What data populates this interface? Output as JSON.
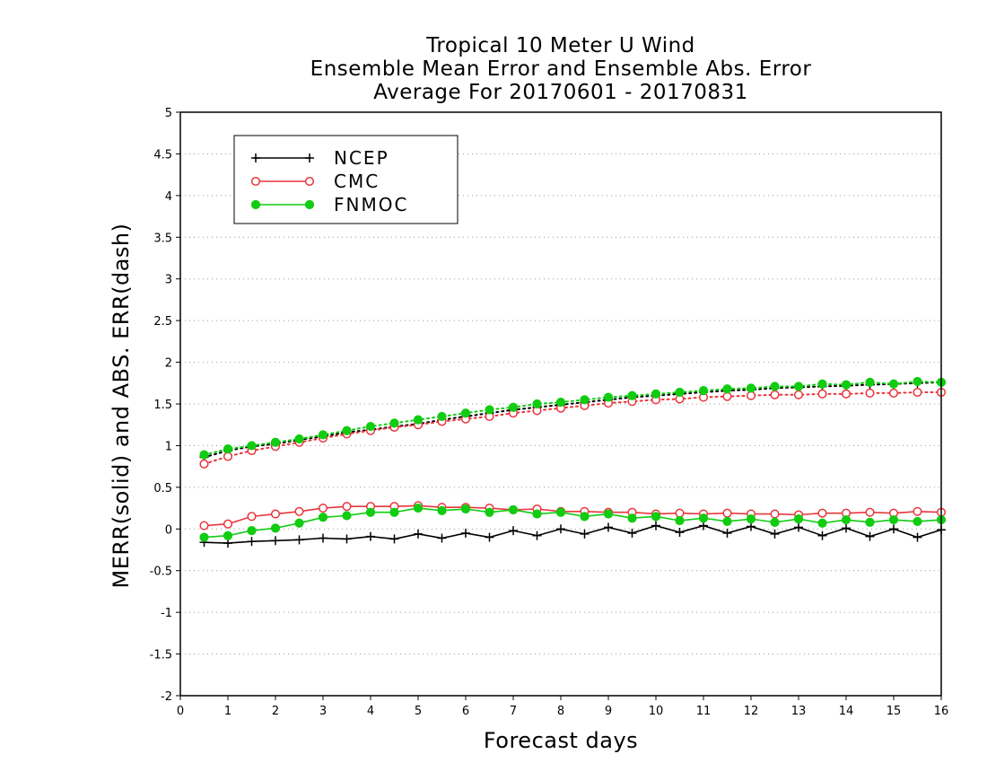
{
  "chart_data": {
    "type": "line",
    "title": "Tropical 10 Meter U Wind",
    "subtitle": "Ensemble Mean Error and Ensemble Abs. Error",
    "subtitle2": "Average For 20170601 - 20170831",
    "xlabel": "Forecast days",
    "ylabel": "MERR(solid) and ABS. ERR(dash)",
    "xlim": [
      0,
      16
    ],
    "ylim": [
      -2,
      5
    ],
    "xticks": [
      "0",
      "1",
      "2",
      "3",
      "4",
      "5",
      "6",
      "7",
      "8",
      "9",
      "10",
      "11",
      "12",
      "13",
      "14",
      "15",
      "16"
    ],
    "yticks": [
      "-2",
      "-1.5",
      "-1",
      "-0.5",
      "0",
      "0.5",
      "1",
      "1.5",
      "2",
      "2.5",
      "3",
      "3.5",
      "4",
      "4.5",
      "5"
    ],
    "grid": "horizontal dotted",
    "legend_position": "top-left",
    "x": [
      0.5,
      1,
      1.5,
      2,
      2.5,
      3,
      3.5,
      4,
      4.5,
      5,
      5.5,
      6,
      6.5,
      7,
      7.5,
      8,
      8.5,
      9,
      9.5,
      10,
      10.5,
      11,
      11.5,
      12,
      12.5,
      13,
      13.5,
      14,
      14.5,
      15,
      15.5,
      16
    ],
    "series": [
      {
        "name": "NCEP",
        "color": "#000000",
        "marker": "plus",
        "merr": [
          -0.16,
          -0.17,
          -0.15,
          -0.14,
          -0.13,
          -0.11,
          -0.12,
          -0.09,
          -0.12,
          -0.06,
          -0.11,
          -0.05,
          -0.1,
          -0.02,
          -0.08,
          0.0,
          -0.06,
          0.02,
          -0.05,
          0.04,
          -0.04,
          0.04,
          -0.05,
          0.03,
          -0.06,
          0.02,
          -0.08,
          0.01,
          -0.09,
          0.0,
          -0.1,
          -0.01
        ],
        "abs_err": [
          0.86,
          0.94,
          0.99,
          1.02,
          1.07,
          1.11,
          1.16,
          1.19,
          1.23,
          1.26,
          1.31,
          1.35,
          1.39,
          1.43,
          1.46,
          1.49,
          1.52,
          1.55,
          1.58,
          1.6,
          1.62,
          1.64,
          1.66,
          1.67,
          1.69,
          1.7,
          1.71,
          1.72,
          1.73,
          1.74,
          1.75,
          1.76
        ]
      },
      {
        "name": "CMC",
        "color": "#e8363d",
        "marker": "open-circle",
        "merr": [
          0.04,
          0.06,
          0.15,
          0.18,
          0.21,
          0.25,
          0.27,
          0.27,
          0.27,
          0.28,
          0.26,
          0.26,
          0.25,
          0.23,
          0.24,
          0.21,
          0.21,
          0.2,
          0.2,
          0.18,
          0.19,
          0.18,
          0.19,
          0.18,
          0.18,
          0.17,
          0.19,
          0.19,
          0.2,
          0.19,
          0.21,
          0.2
        ],
        "abs_err": [
          0.78,
          0.87,
          0.94,
          0.99,
          1.04,
          1.09,
          1.14,
          1.18,
          1.22,
          1.25,
          1.29,
          1.32,
          1.35,
          1.39,
          1.42,
          1.45,
          1.48,
          1.51,
          1.53,
          1.55,
          1.56,
          1.58,
          1.59,
          1.6,
          1.61,
          1.61,
          1.62,
          1.62,
          1.63,
          1.63,
          1.64,
          1.64
        ]
      },
      {
        "name": "FNMOC",
        "color": "#11cc11",
        "marker": "filled-circle",
        "merr": [
          -0.1,
          -0.08,
          -0.02,
          0.01,
          0.07,
          0.14,
          0.16,
          0.2,
          0.2,
          0.25,
          0.22,
          0.24,
          0.2,
          0.23,
          0.18,
          0.2,
          0.15,
          0.18,
          0.13,
          0.15,
          0.1,
          0.13,
          0.09,
          0.12,
          0.08,
          0.12,
          0.07,
          0.11,
          0.08,
          0.11,
          0.09,
          0.11
        ],
        "abs_err": [
          0.89,
          0.96,
          1.0,
          1.04,
          1.08,
          1.13,
          1.18,
          1.23,
          1.27,
          1.31,
          1.35,
          1.39,
          1.43,
          1.46,
          1.5,
          1.52,
          1.55,
          1.58,
          1.6,
          1.62,
          1.64,
          1.66,
          1.68,
          1.69,
          1.71,
          1.71,
          1.74,
          1.73,
          1.76,
          1.74,
          1.77,
          1.76
        ]
      }
    ]
  }
}
